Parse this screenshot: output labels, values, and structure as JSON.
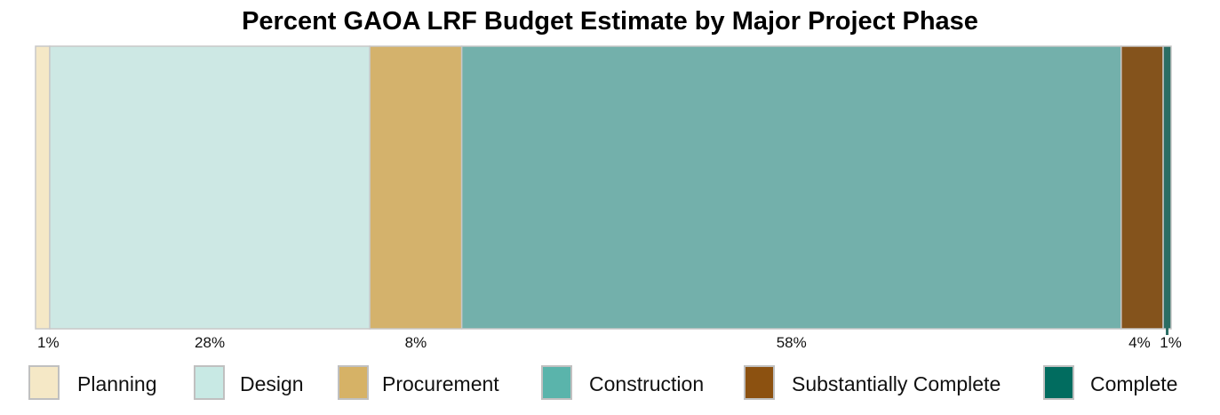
{
  "chart_data": {
    "type": "bar",
    "orientation": "horizontal-stacked-100",
    "title": "Percent GAOA LRF Budget Estimate by Major Project Phase",
    "categories": [
      "Planning",
      "Design",
      "Procurement",
      "Construction",
      "Substantially Complete",
      "Complete"
    ],
    "values": [
      1.25,
      28.2,
      8.1,
      58.1,
      3.7,
      0.7
    ],
    "data_labels": [
      "1%",
      "28%",
      "8%",
      "58%",
      "4%",
      "1%"
    ],
    "colors": [
      "#f5e8c6",
      "#cde8e4",
      "#d4b26c",
      "#73b0ab",
      "#84531c",
      "#2a6d63"
    ],
    "legend_colors": [
      "#f5e8c6",
      "#c8e9e4",
      "#d6b266",
      "#5ab4ab",
      "#8c5110",
      "#016c5f"
    ],
    "legend_position": "bottom",
    "grid": false
  }
}
